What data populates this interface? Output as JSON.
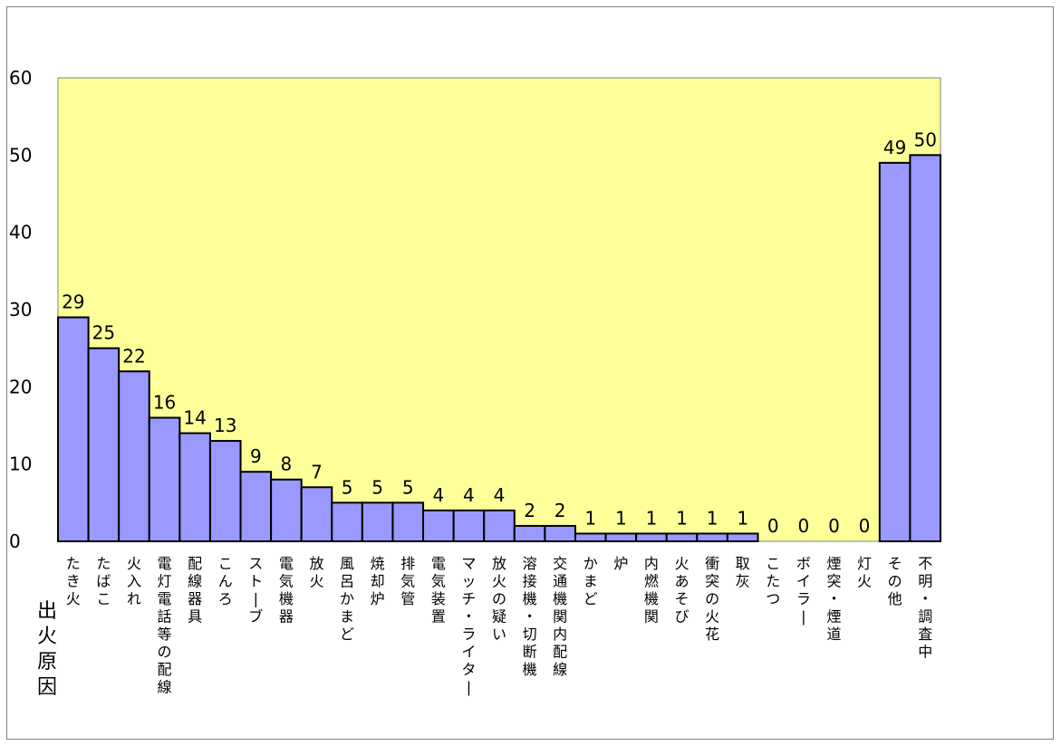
{
  "chart_data": {
    "type": "bar",
    "title": "",
    "xlabel": "出火原因",
    "ylabel": "",
    "ylim": [
      0,
      60
    ],
    "yticks": [
      0,
      10,
      20,
      30,
      40,
      50,
      60
    ],
    "categories": [
      "たき火",
      "たばこ",
      "火入れ",
      "電灯電話等の配線",
      "配線器具",
      "こんろ",
      "ストーブ",
      "電気機器",
      "放火",
      "風呂かまど",
      "焼却炉",
      "排気管",
      "電気装置",
      "マッチ・ライター",
      "放火の疑い",
      "溶接機・切断機",
      "交通機関内配線",
      "かまど",
      "炉",
      "内燃機関",
      "火あそび",
      "衝突の火花",
      "取灰",
      "こたつ",
      "ボイラー",
      "煙突・煙道",
      "灯火",
      "その他",
      "不明・調査中"
    ],
    "values": [
      29,
      25,
      22,
      16,
      14,
      13,
      9,
      8,
      7,
      5,
      5,
      5,
      4,
      4,
      4,
      2,
      2,
      1,
      1,
      1,
      1,
      1,
      1,
      0,
      0,
      0,
      0,
      49,
      50
    ],
    "plot_background": "#FFFF99",
    "bar_color": "#9999FF",
    "bar_edge_color": "#000000",
    "grid": false,
    "legend": "none"
  }
}
